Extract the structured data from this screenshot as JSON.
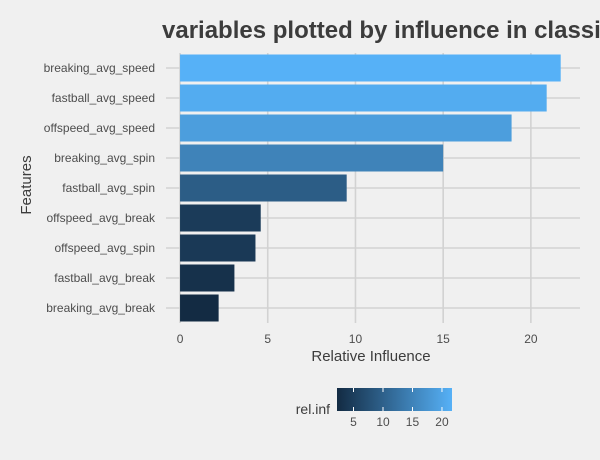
{
  "chart_data": {
    "type": "bar",
    "orientation": "horizontal",
    "title": "variables plotted by influence in classi",
    "xlabel": "Relative Influence",
    "ylabel": "Features",
    "categories": [
      "breaking_avg_speed",
      "fastball_avg_speed",
      "offspeed_avg_speed",
      "breaking_avg_spin",
      "fastball_avg_spin",
      "offspeed_avg_break",
      "offspeed_avg_spin",
      "fastball_avg_break",
      "breaking_avg_break"
    ],
    "values": [
      21.7,
      20.9,
      18.9,
      15.0,
      9.5,
      4.6,
      4.3,
      3.1,
      2.2
    ],
    "xlim": [
      -0.8,
      22.8
    ],
    "xticks": [
      0,
      5,
      10,
      15,
      20
    ],
    "grid": true,
    "legend": {
      "title": "rel.inf",
      "placement": "bottom",
      "type": "colorbar",
      "range": [
        2.2,
        21.7
      ],
      "ticks": [
        5,
        10,
        15,
        20
      ],
      "low_color": "#132B43",
      "high_color": "#56B1F7"
    },
    "colors": {
      "background": "#F0F0F0",
      "grid": "#D2D2D2",
      "text": "#3C3C3C",
      "tick_text": "#4D4D4D"
    }
  }
}
